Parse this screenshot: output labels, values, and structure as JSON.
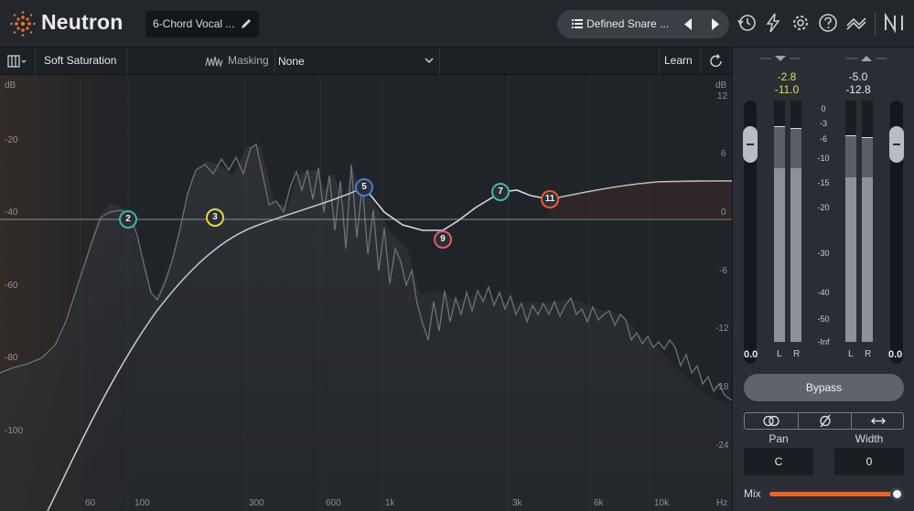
{
  "app": {
    "brand": "Neutron",
    "preset_name": "6-Chord Vocal ...",
    "global_preset": "Defined Snare ...",
    "toolbar_icons": [
      "history-icon",
      "lightning-icon",
      "gear-icon",
      "help-icon",
      "signal-flow-icon",
      "ni-logo-icon"
    ]
  },
  "module_bar": {
    "module_name": "Soft Saturation",
    "masking_label": "Masking",
    "masking_value": "None",
    "learn_label": "Learn"
  },
  "eq": {
    "db_left_unit": "dB",
    "db_left_ticks": [
      "-20",
      "-40",
      "-60",
      "-80",
      "-100"
    ],
    "db_right_unit": "dB",
    "db_right_ticks": [
      "12",
      "6",
      "0",
      "-6",
      "-12",
      "-18",
      "-24"
    ],
    "freq_ticks": [
      "60",
      "100",
      "300",
      "600",
      "1k",
      "3k",
      "6k",
      "10k"
    ],
    "freq_unit": "Hz",
    "nodes": [
      {
        "label": "2",
        "color": "#37b6ad"
      },
      {
        "label": "3",
        "color": "#e6d845"
      },
      {
        "label": "5",
        "color": "#3d7fd6"
      },
      {
        "label": "9",
        "color": "#e35a6f"
      },
      {
        "label": "7",
        "color": "#3cb8a4"
      },
      {
        "label": "11",
        "color": "#ea5a2e"
      }
    ]
  },
  "meters": {
    "input_peak": "-2.8",
    "input_rms": "-11.0",
    "output_peak": "-5.0",
    "output_rms": "-12.8",
    "scale": [
      "0",
      "-3",
      "-6",
      "-10",
      "-15",
      "-20",
      "-30",
      "-40",
      "-50",
      "-Inf"
    ],
    "input_gain": "0.0",
    "output_gain": "0.0",
    "left_label": "L",
    "right_label": "R"
  },
  "controls": {
    "bypass_label": "Bypass",
    "pan_label": "Pan",
    "pan_value": "C",
    "width_label": "Width",
    "width_value": "0",
    "mix_label": "Mix"
  },
  "colors": {
    "peak_yellow": "#d4e35a",
    "accent_orange": "#e8652a"
  }
}
